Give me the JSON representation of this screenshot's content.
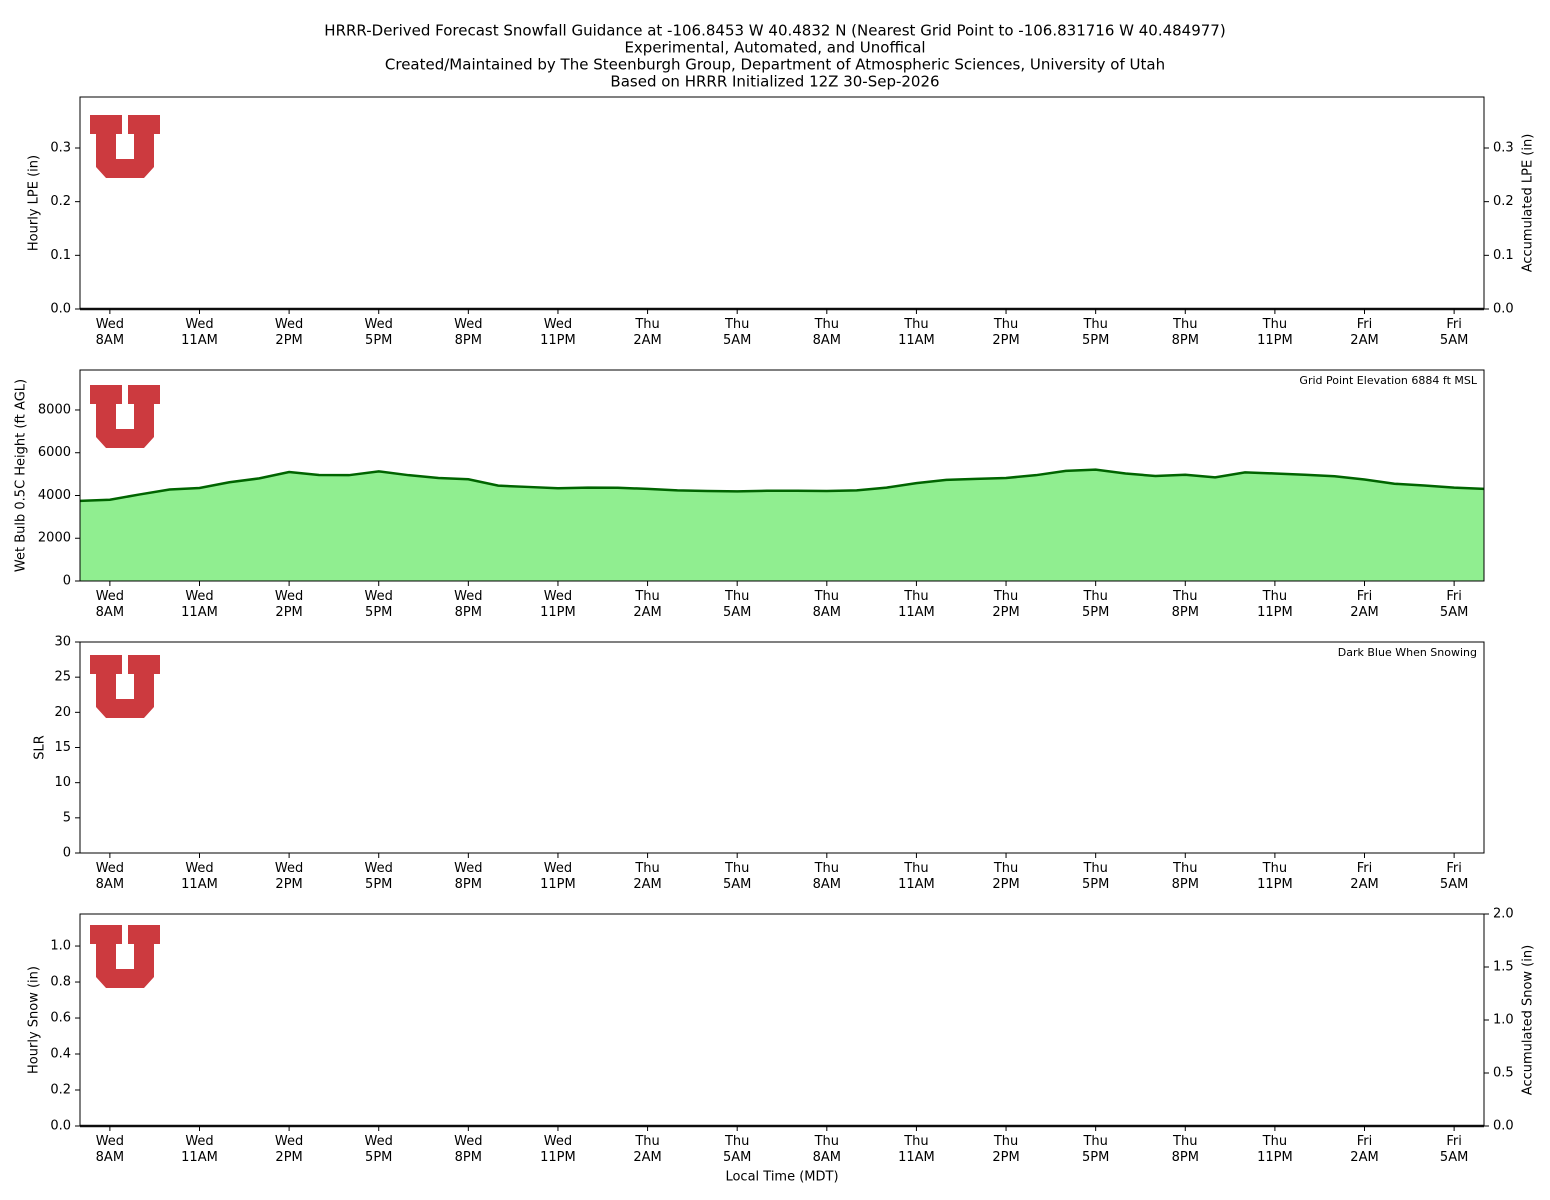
{
  "header": {
    "lines": [
      "HRRR-Derived Forecast Snowfall Guidance at -106.8453 W 40.4832 N (Nearest Grid Point to -106.831716 W 40.484977)",
      "Experimental, Automated, and Unoffical",
      "Created/Maintained by The Steenburgh Group, Department of Atmospheric Sciences, University of Utah",
      "Based on HRRR Initialized 12Z 30-Sep-2026"
    ]
  },
  "chart_data": [
    {
      "type": "bar",
      "ylabel": "Hourly LPE (in)",
      "y2label": "Accumulated LPE (in)",
      "x": [
        1,
        2,
        3,
        4,
        5,
        6,
        7,
        8,
        9,
        10,
        11,
        12,
        13,
        14,
        15,
        16,
        17,
        18,
        19,
        20,
        21,
        22,
        23,
        24,
        25,
        26,
        27,
        28,
        29,
        30,
        31,
        32,
        33,
        34,
        35,
        36,
        37,
        38,
        39,
        40,
        41,
        42,
        43,
        44,
        45,
        46,
        47,
        48
      ],
      "xlim": [
        1,
        48
      ],
      "xticks": [
        {
          "value": 2,
          "label": "Wed\n8AM"
        },
        {
          "value": 5,
          "label": "Wed\n11AM"
        },
        {
          "value": 8,
          "label": "Wed\n2PM"
        },
        {
          "value": 11,
          "label": "Wed\n5PM"
        },
        {
          "value": 14,
          "label": "Wed\n8PM"
        },
        {
          "value": 17,
          "label": "Wed\n11PM"
        },
        {
          "value": 20,
          "label": "Thu\n2AM"
        },
        {
          "value": 23,
          "label": "Thu\n5AM"
        },
        {
          "value": 26,
          "label": "Thu\n8AM"
        },
        {
          "value": 29,
          "label": "Thu\n11AM"
        },
        {
          "value": 32,
          "label": "Thu\n2PM"
        },
        {
          "value": 35,
          "label": "Thu\n5PM"
        },
        {
          "value": 38,
          "label": "Thu\n8PM"
        },
        {
          "value": 41,
          "label": "Thu\n11PM"
        },
        {
          "value": 44,
          "label": "Fri\n2AM"
        },
        {
          "value": 47,
          "label": "Fri\n5AM"
        }
      ],
      "ylim": [
        0,
        0.395
      ],
      "yticks": [
        {
          "value": 0,
          "label": "0.0"
        },
        0.1,
        0.2,
        0.3
      ],
      "y2lim": [
        0,
        0.395
      ],
      "y2ticks": [
        {
          "value": 0,
          "label": "0.0"
        },
        0.1,
        0.2,
        0.3
      ],
      "series": [
        {
          "type": "bar",
          "color": "#2e8b57",
          "values": [
            0,
            0,
            0,
            0,
            0,
            0,
            0,
            0,
            0,
            0,
            0,
            0,
            0,
            0,
            0,
            0,
            0,
            0,
            0,
            0,
            0,
            0,
            0,
            0,
            0,
            0,
            0,
            0,
            0,
            0,
            0,
            0,
            0,
            0,
            0,
            0,
            0,
            0,
            0,
            0,
            0,
            0,
            0,
            0,
            0,
            0,
            0,
            0
          ]
        },
        {
          "type": "line",
          "axis": "y2",
          "color": "#1a1a1a",
          "values": [
            0,
            0,
            0,
            0,
            0,
            0,
            0,
            0,
            0,
            0,
            0,
            0,
            0,
            0,
            0,
            0,
            0,
            0,
            0,
            0,
            0,
            0,
            0,
            0,
            0,
            0,
            0,
            0,
            0,
            0,
            0,
            0,
            0,
            0,
            0,
            0,
            0,
            0,
            0,
            0,
            0,
            0,
            0,
            0,
            0,
            0,
            0,
            0
          ]
        }
      ]
    },
    {
      "type": "area",
      "ylabel": "Wet Bulb 0.5C Height (ft AGL)",
      "annotation": "Grid Point Elevation 6884 ft MSL",
      "x": [
        1,
        2,
        3,
        4,
        5,
        6,
        7,
        8,
        9,
        10,
        11,
        12,
        13,
        14,
        15,
        16,
        17,
        18,
        19,
        20,
        21,
        22,
        23,
        24,
        25,
        26,
        27,
        28,
        29,
        30,
        31,
        32,
        33,
        34,
        35,
        36,
        37,
        38,
        39,
        40,
        41,
        42,
        43,
        44,
        45,
        46,
        47,
        48
      ],
      "xlim": [
        1,
        48
      ],
      "xticks": [
        {
          "value": 2,
          "label": "Wed\n8AM"
        },
        {
          "value": 5,
          "label": "Wed\n11AM"
        },
        {
          "value": 8,
          "label": "Wed\n2PM"
        },
        {
          "value": 11,
          "label": "Wed\n5PM"
        },
        {
          "value": 14,
          "label": "Wed\n8PM"
        },
        {
          "value": 17,
          "label": "Wed\n11PM"
        },
        {
          "value": 20,
          "label": "Thu\n2AM"
        },
        {
          "value": 23,
          "label": "Thu\n5AM"
        },
        {
          "value": 26,
          "label": "Thu\n8AM"
        },
        {
          "value": 29,
          "label": "Thu\n11AM"
        },
        {
          "value": 32,
          "label": "Thu\n2PM"
        },
        {
          "value": 35,
          "label": "Thu\n5PM"
        },
        {
          "value": 38,
          "label": "Thu\n8PM"
        },
        {
          "value": 41,
          "label": "Thu\n11PM"
        },
        {
          "value": 44,
          "label": "Fri\n2AM"
        },
        {
          "value": 47,
          "label": "Fri\n5AM"
        }
      ],
      "ylim": [
        0,
        9870
      ],
      "yticks": [
        0,
        2000,
        4000,
        6000,
        8000
      ],
      "series": [
        {
          "type": "area",
          "color": "#006400",
          "fill": "#90ee90",
          "values": [
            3750,
            3800,
            4050,
            4280,
            4350,
            4620,
            4800,
            5100,
            4960,
            4950,
            5130,
            4950,
            4820,
            4760,
            4460,
            4400,
            4340,
            4370,
            4360,
            4310,
            4240,
            4210,
            4190,
            4220,
            4220,
            4210,
            4240,
            4370,
            4580,
            4730,
            4780,
            4820,
            4950,
            5150,
            5210,
            5030,
            4910,
            4970,
            4850,
            5080,
            5030,
            4970,
            4900,
            4750,
            4550,
            4470,
            4370,
            4310
          ]
        }
      ]
    },
    {
      "type": "line",
      "ylabel": "SLR",
      "annotation": "Dark Blue When Snowing",
      "x": [
        1,
        2,
        3,
        4,
        5,
        6,
        7,
        8,
        9,
        10,
        11,
        12,
        13,
        14,
        15,
        16,
        17,
        18,
        19,
        20,
        21,
        22,
        23,
        24,
        25,
        26,
        27,
        28,
        29,
        30,
        31,
        32,
        33,
        34,
        35,
        36,
        37,
        38,
        39,
        40,
        41,
        42,
        43,
        44,
        45,
        46,
        47,
        48
      ],
      "xlim": [
        1,
        48
      ],
      "xticks": [
        {
          "value": 2,
          "label": "Wed\n8AM"
        },
        {
          "value": 5,
          "label": "Wed\n11AM"
        },
        {
          "value": 8,
          "label": "Wed\n2PM"
        },
        {
          "value": 11,
          "label": "Wed\n5PM"
        },
        {
          "value": 14,
          "label": "Wed\n8PM"
        },
        {
          "value": 17,
          "label": "Wed\n11PM"
        },
        {
          "value": 20,
          "label": "Thu\n2AM"
        },
        {
          "value": 23,
          "label": "Thu\n5AM"
        },
        {
          "value": 26,
          "label": "Thu\n8AM"
        },
        {
          "value": 29,
          "label": "Thu\n11AM"
        },
        {
          "value": 32,
          "label": "Thu\n2PM"
        },
        {
          "value": 35,
          "label": "Thu\n5PM"
        },
        {
          "value": 38,
          "label": "Thu\n8PM"
        },
        {
          "value": 41,
          "label": "Thu\n11PM"
        },
        {
          "value": 44,
          "label": "Fri\n2AM"
        },
        {
          "value": 47,
          "label": "Fri\n5AM"
        }
      ],
      "ylim": [
        0,
        30
      ],
      "yticks": [
        0,
        5,
        10,
        15,
        20,
        25,
        30
      ],
      "series": []
    },
    {
      "type": "bar",
      "ylabel": "Hourly Snow (in)",
      "y2label": "Accumulated Snow (in)",
      "xlabel": "Local Time (MDT)",
      "x": [
        1,
        2,
        3,
        4,
        5,
        6,
        7,
        8,
        9,
        10,
        11,
        12,
        13,
        14,
        15,
        16,
        17,
        18,
        19,
        20,
        21,
        22,
        23,
        24,
        25,
        26,
        27,
        28,
        29,
        30,
        31,
        32,
        33,
        34,
        35,
        36,
        37,
        38,
        39,
        40,
        41,
        42,
        43,
        44,
        45,
        46,
        47,
        48
      ],
      "xlim": [
        1,
        48
      ],
      "xticks": [
        {
          "value": 2,
          "label": "Wed\n8AM"
        },
        {
          "value": 5,
          "label": "Wed\n11AM"
        },
        {
          "value": 8,
          "label": "Wed\n2PM"
        },
        {
          "value": 11,
          "label": "Wed\n5PM"
        },
        {
          "value": 14,
          "label": "Wed\n8PM"
        },
        {
          "value": 17,
          "label": "Wed\n11PM"
        },
        {
          "value": 20,
          "label": "Thu\n2AM"
        },
        {
          "value": 23,
          "label": "Thu\n5AM"
        },
        {
          "value": 26,
          "label": "Thu\n8AM"
        },
        {
          "value": 29,
          "label": "Thu\n11AM"
        },
        {
          "value": 32,
          "label": "Thu\n2PM"
        },
        {
          "value": 35,
          "label": "Thu\n5PM"
        },
        {
          "value": 38,
          "label": "Thu\n8PM"
        },
        {
          "value": 41,
          "label": "Thu\n11PM"
        },
        {
          "value": 44,
          "label": "Fri\n2AM"
        },
        {
          "value": 47,
          "label": "Fri\n5AM"
        }
      ],
      "ylim": [
        0,
        1.178
      ],
      "yticks": [
        {
          "value": 0,
          "label": "0.0"
        },
        0.2,
        0.4,
        0.6,
        0.8,
        {
          "value": 1,
          "label": "1.0"
        }
      ],
      "y2lim": [
        0,
        2
      ],
      "y2ticks": [
        {
          "value": 0,
          "label": "0.0"
        },
        0.5,
        {
          "value": 1,
          "label": "1.0"
        },
        1.5,
        {
          "value": 2,
          "label": "2.0"
        }
      ],
      "series": [
        {
          "type": "bar",
          "color": "#1f3f9f",
          "values": [
            0,
            0,
            0,
            0,
            0,
            0,
            0,
            0,
            0,
            0,
            0,
            0,
            0,
            0,
            0,
            0,
            0,
            0,
            0,
            0,
            0,
            0,
            0,
            0,
            0,
            0,
            0,
            0,
            0,
            0,
            0,
            0,
            0,
            0,
            0,
            0,
            0,
            0,
            0,
            0,
            0,
            0,
            0,
            0,
            0,
            0,
            0,
            0
          ]
        },
        {
          "type": "line",
          "axis": "y2",
          "color": "#1a1a1a",
          "values": [
            0,
            0,
            0,
            0,
            0,
            0,
            0,
            0,
            0,
            0,
            0,
            0,
            0,
            0,
            0,
            0,
            0,
            0,
            0,
            0,
            0,
            0,
            0,
            0,
            0,
            0,
            0,
            0,
            0,
            0,
            0,
            0,
            0,
            0,
            0,
            0,
            0,
            0,
            0,
            0,
            0,
            0,
            0,
            0,
            0,
            0,
            0,
            0
          ]
        }
      ]
    }
  ]
}
